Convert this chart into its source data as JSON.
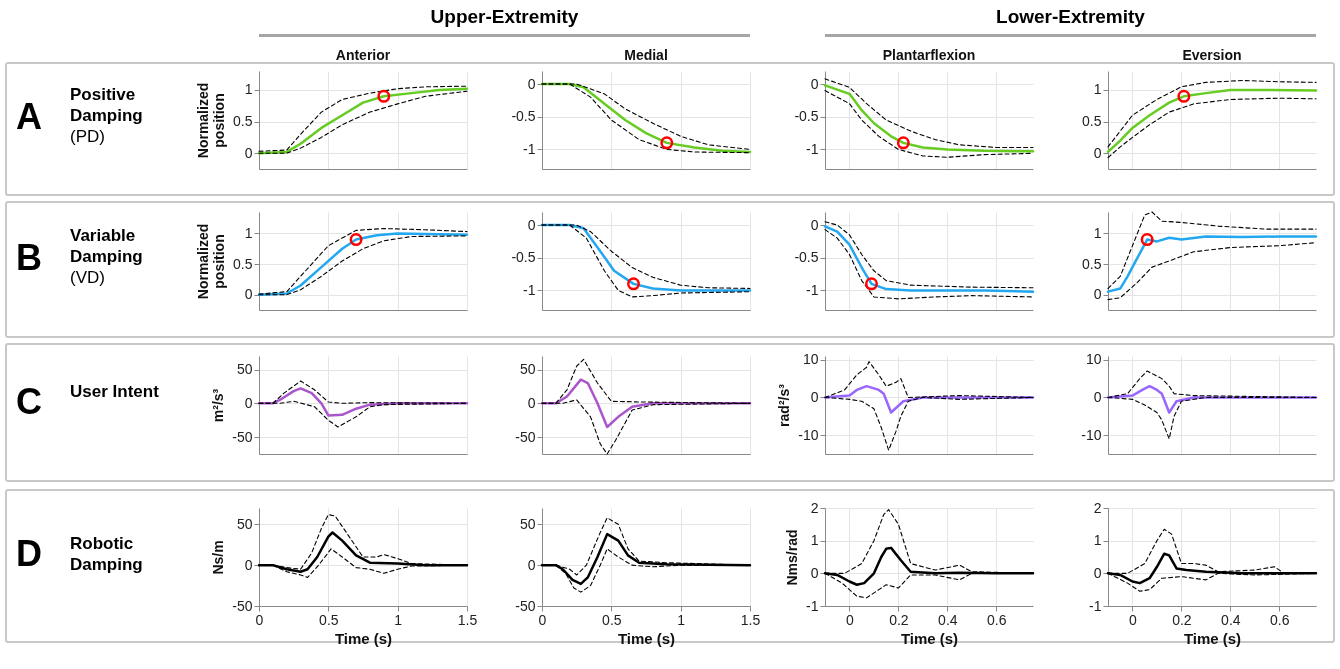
{
  "chart_data": [
    {
      "type": "line",
      "title": "Anterior",
      "ylabel": "Normalized position",
      "annotations": [
        "Upper-Extremity",
        "A",
        "Positive Damping",
        "(PD)"
      ],
      "xlim": [
        0,
        1.5
      ],
      "xticks": [
        0,
        0.5,
        1,
        1.5
      ],
      "ylim": [
        -0.25,
        1.3
      ],
      "yticks": [
        0,
        0.5,
        1
      ],
      "grid": true,
      "tick_labels": "y",
      "series": [
        {
          "color": "#66cc22",
          "line_style": "solid",
          "x": [
            0,
            0.2,
            0.3,
            0.45,
            0.6,
            0.75,
            0.9,
            1.1,
            1.3,
            1.5
          ],
          "values": [
            0,
            0.02,
            0.15,
            0.4,
            0.6,
            0.8,
            0.9,
            0.95,
            1,
            1.02
          ]
        },
        {
          "color": "#000000",
          "line_style": "dashed",
          "x": [
            0,
            0.2,
            0.3,
            0.45,
            0.6,
            0.8,
            1,
            1.2,
            1.5
          ],
          "values": [
            0.03,
            0.05,
            0.3,
            0.65,
            0.85,
            0.95,
            1.02,
            1.05,
            1.06
          ]
        },
        {
          "color": "#000000",
          "line_style": "dashed",
          "x": [
            0,
            0.2,
            0.3,
            0.45,
            0.6,
            0.8,
            1,
            1.2,
            1.5
          ],
          "values": [
            0,
            0,
            0.08,
            0.25,
            0.45,
            0.65,
            0.78,
            0.9,
            0.98
          ]
        },
        {
          "type": "scatter",
          "color": "#ff0000",
          "marker": "circle",
          "x": [
            0.9
          ],
          "values": [
            0.9
          ]
        }
      ]
    },
    {
      "type": "line",
      "title": "Medial",
      "xlim": [
        0,
        1.5
      ],
      "xticks": [
        0,
        0.5,
        1,
        1.5
      ],
      "ylim": [
        -1.3,
        0.2
      ],
      "yticks": [
        -1,
        -0.5,
        0
      ],
      "grid": true,
      "tick_labels": "y",
      "series": [
        {
          "color": "#66cc22",
          "line_style": "solid",
          "x": [
            0,
            0.2,
            0.3,
            0.45,
            0.6,
            0.75,
            0.9,
            1.1,
            1.3,
            1.5
          ],
          "values": [
            0,
            0,
            -0.05,
            -0.3,
            -0.55,
            -0.75,
            -0.9,
            -0.97,
            -1.02,
            -1.04
          ]
        },
        {
          "color": "#000000",
          "line_style": "dashed",
          "x": [
            0,
            0.25,
            0.45,
            0.6,
            0.8,
            1,
            1.2,
            1.5
          ],
          "values": [
            0,
            0,
            -0.15,
            -0.38,
            -0.6,
            -0.8,
            -0.93,
            -1
          ]
        },
        {
          "color": "#000000",
          "line_style": "dashed",
          "x": [
            0,
            0.2,
            0.35,
            0.5,
            0.7,
            0.9,
            1.1,
            1.5
          ],
          "values": [
            0,
            0,
            -0.2,
            -0.55,
            -0.85,
            -1,
            -1.04,
            -1.05
          ]
        },
        {
          "type": "scatter",
          "color": "#ff0000",
          "marker": "circle",
          "x": [
            0.9
          ],
          "values": [
            -0.9
          ]
        }
      ]
    },
    {
      "type": "line",
      "title": "Plantarflexion",
      "annotations": [
        "Lower-Extremity"
      ],
      "xlim": [
        -0.1,
        0.75
      ],
      "xticks": [
        0,
        0.2,
        0.4,
        0.6
      ],
      "ylim": [
        -1.3,
        0.2
      ],
      "yticks": [
        -1,
        -0.5,
        0
      ],
      "grid": true,
      "tick_labels": "y",
      "series": [
        {
          "color": "#66cc22",
          "line_style": "solid",
          "x": [
            -0.1,
            0,
            0.05,
            0.1,
            0.17,
            0.22,
            0.3,
            0.4,
            0.55,
            0.75
          ],
          "values": [
            -0.02,
            -0.15,
            -0.4,
            -0.6,
            -0.8,
            -0.9,
            -0.97,
            -1,
            -1.02,
            -1.03
          ]
        },
        {
          "color": "#000000",
          "line_style": "dashed",
          "x": [
            -0.1,
            0,
            0.07,
            0.15,
            0.25,
            0.35,
            0.45,
            0.6,
            0.75
          ],
          "values": [
            0.08,
            -0.05,
            -0.3,
            -0.55,
            -0.72,
            -0.85,
            -0.93,
            -0.97,
            -0.97
          ]
        },
        {
          "color": "#000000",
          "line_style": "dashed",
          "x": [
            -0.1,
            0,
            0.05,
            0.12,
            0.2,
            0.3,
            0.4,
            0.55,
            0.75
          ],
          "values": [
            -0.1,
            -0.3,
            -0.55,
            -0.8,
            -1,
            -1.1,
            -1.12,
            -1.08,
            -1.06
          ]
        },
        {
          "type": "scatter",
          "color": "#ff0000",
          "marker": "circle",
          "x": [
            0.22
          ],
          "values": [
            -0.9
          ]
        }
      ]
    },
    {
      "type": "line",
      "title": "Eversion",
      "xlim": [
        -0.1,
        0.75
      ],
      "xticks": [
        0,
        0.2,
        0.4,
        0.6
      ],
      "ylim": [
        -0.25,
        1.3
      ],
      "yticks": [
        0,
        0.5,
        1
      ],
      "grid": true,
      "tick_labels": "y",
      "series": [
        {
          "color": "#66cc22",
          "line_style": "solid",
          "x": [
            -0.1,
            -0.05,
            0,
            0.07,
            0.15,
            0.21,
            0.3,
            0.4,
            0.55,
            0.75
          ],
          "values": [
            0.02,
            0.2,
            0.4,
            0.6,
            0.8,
            0.9,
            0.95,
            1,
            1,
            0.99
          ]
        },
        {
          "color": "#000000",
          "line_style": "dashed",
          "x": [
            -0.1,
            -0.05,
            0,
            0.1,
            0.2,
            0.3,
            0.45,
            0.6,
            0.75
          ],
          "values": [
            0.1,
            0.35,
            0.6,
            0.85,
            1.05,
            1.12,
            1.15,
            1.13,
            1.12
          ]
        },
        {
          "color": "#000000",
          "line_style": "dashed",
          "x": [
            -0.1,
            -0.05,
            0,
            0.07,
            0.15,
            0.25,
            0.4,
            0.6,
            0.75
          ],
          "values": [
            -0.07,
            0.1,
            0.25,
            0.45,
            0.65,
            0.78,
            0.85,
            0.87,
            0.86
          ]
        },
        {
          "type": "scatter",
          "color": "#ff0000",
          "marker": "circle",
          "x": [
            0.21
          ],
          "values": [
            0.9
          ]
        }
      ]
    },
    {
      "type": "line",
      "ylabel": "Normalized position",
      "annotations": [
        "B",
        "Variable Damping",
        "(VD)"
      ],
      "xlim": [
        0,
        1.5
      ],
      "xticks": [
        0,
        0.5,
        1,
        1.5
      ],
      "ylim": [
        -0.25,
        1.35
      ],
      "yticks": [
        0,
        0.5,
        1
      ],
      "grid": true,
      "tick_labels": "y",
      "series": [
        {
          "color": "#22a7f0",
          "line_style": "solid",
          "x": [
            0,
            0.2,
            0.3,
            0.45,
            0.6,
            0.7,
            0.85,
            1,
            1.5
          ],
          "values": [
            0,
            0.02,
            0.15,
            0.45,
            0.75,
            0.9,
            0.97,
            1,
            0.98
          ]
        },
        {
          "color": "#000000",
          "line_style": "dashed",
          "x": [
            0,
            0.2,
            0.3,
            0.5,
            0.7,
            0.9,
            1.2,
            1.5
          ],
          "values": [
            0.01,
            0.05,
            0.3,
            0.8,
            1.05,
            1.08,
            1.06,
            1.03
          ]
        },
        {
          "color": "#000000",
          "line_style": "dashed",
          "x": [
            0,
            0.2,
            0.3,
            0.45,
            0.6,
            0.75,
            0.9,
            1.1,
            1.5
          ],
          "values": [
            0,
            0,
            0.08,
            0.3,
            0.55,
            0.75,
            0.88,
            0.95,
            0.96
          ]
        },
        {
          "type": "scatter",
          "color": "#ff0000",
          "marker": "circle",
          "x": [
            0.7
          ],
          "values": [
            0.9
          ]
        }
      ]
    },
    {
      "type": "line",
      "xlim": [
        0,
        1.5
      ],
      "xticks": [
        0,
        0.5,
        1,
        1.5
      ],
      "ylim": [
        -1.3,
        0.2
      ],
      "yticks": [
        -1,
        -0.5,
        0
      ],
      "grid": true,
      "tick_labels": "y",
      "series": [
        {
          "color": "#22a7f0",
          "line_style": "solid",
          "x": [
            0,
            0.2,
            0.3,
            0.42,
            0.52,
            0.66,
            0.8,
            1,
            1.5
          ],
          "values": [
            0,
            0,
            -0.05,
            -0.4,
            -0.7,
            -0.9,
            -0.97,
            -1,
            -1
          ]
        },
        {
          "color": "#000000",
          "line_style": "dashed",
          "x": [
            0,
            0.25,
            0.35,
            0.5,
            0.65,
            0.8,
            1,
            1.2,
            1.5
          ],
          "values": [
            0,
            0,
            -0.1,
            -0.4,
            -0.65,
            -0.8,
            -0.92,
            -0.96,
            -0.97
          ]
        },
        {
          "color": "#000000",
          "line_style": "dashed",
          "x": [
            0,
            0.2,
            0.32,
            0.45,
            0.55,
            0.65,
            0.8,
            1,
            1.5
          ],
          "values": [
            0,
            0,
            -0.2,
            -0.7,
            -1,
            -1.1,
            -1.08,
            -1.04,
            -1.02
          ]
        },
        {
          "type": "scatter",
          "color": "#ff0000",
          "marker": "circle",
          "x": [
            0.66
          ],
          "values": [
            -0.9
          ]
        }
      ]
    },
    {
      "type": "line",
      "xlim": [
        -0.1,
        0.75
      ],
      "xticks": [
        0,
        0.2,
        0.4,
        0.6
      ],
      "ylim": [
        -1.3,
        0.2
      ],
      "yticks": [
        -1,
        -0.5,
        0
      ],
      "grid": true,
      "tick_labels": "y",
      "series": [
        {
          "color": "#22a7f0",
          "line_style": "solid",
          "x": [
            -0.1,
            -0.05,
            0,
            0.05,
            0.09,
            0.15,
            0.25,
            0.4,
            0.55,
            0.75
          ],
          "values": [
            -0.02,
            -0.1,
            -0.3,
            -0.65,
            -0.9,
            -0.98,
            -1,
            -1,
            -1,
            -1.02
          ]
        },
        {
          "color": "#000000",
          "line_style": "dashed",
          "x": [
            -0.1,
            -0.05,
            0,
            0.05,
            0.1,
            0.15,
            0.25,
            0.5,
            0.75
          ],
          "values": [
            0.05,
            0,
            -0.15,
            -0.45,
            -0.7,
            -0.85,
            -0.92,
            -0.95,
            -0.96
          ]
        },
        {
          "color": "#000000",
          "line_style": "dashed",
          "x": [
            -0.1,
            -0.05,
            0,
            0.05,
            0.1,
            0.2,
            0.35,
            0.5,
            0.75
          ],
          "values": [
            -0.07,
            -0.2,
            -0.45,
            -0.85,
            -1.1,
            -1.13,
            -1.1,
            -1.08,
            -1.1
          ]
        },
        {
          "type": "scatter",
          "color": "#ff0000",
          "marker": "circle",
          "x": [
            0.09
          ],
          "values": [
            -0.9
          ]
        }
      ]
    },
    {
      "type": "line",
      "xlim": [
        -0.1,
        0.75
      ],
      "xticks": [
        0,
        0.2,
        0.4,
        0.6
      ],
      "ylim": [
        -0.25,
        1.35
      ],
      "yticks": [
        0,
        0.5,
        1
      ],
      "grid": true,
      "tick_labels": "y",
      "series": [
        {
          "color": "#22a7f0",
          "line_style": "solid",
          "x": [
            -0.1,
            -0.05,
            -0.02,
            0.02,
            0.06,
            0.1,
            0.15,
            0.2,
            0.3,
            0.45,
            0.6,
            0.75
          ],
          "values": [
            0.05,
            0.1,
            0.3,
            0.6,
            0.9,
            0.87,
            0.93,
            0.9,
            0.95,
            0.94,
            0.95,
            0.95
          ]
        },
        {
          "color": "#000000",
          "line_style": "dashed",
          "x": [
            -0.1,
            -0.05,
            0,
            0.05,
            0.08,
            0.12,
            0.2,
            0.35,
            0.55,
            0.75
          ],
          "values": [
            0.1,
            0.3,
            0.8,
            1.3,
            1.35,
            1.2,
            1.18,
            1.12,
            1.07,
            1.07
          ]
        },
        {
          "color": "#000000",
          "line_style": "dashed",
          "x": [
            -0.1,
            -0.05,
            0.02,
            0.08,
            0.15,
            0.25,
            0.4,
            0.6,
            0.75
          ],
          "values": [
            -0.08,
            -0.05,
            0.2,
            0.45,
            0.55,
            0.7,
            0.77,
            0.8,
            0.85
          ]
        },
        {
          "type": "scatter",
          "color": "#ff0000",
          "marker": "circle",
          "x": [
            0.06
          ],
          "values": [
            0.9
          ]
        }
      ]
    },
    {
      "type": "line",
      "ylabel": "m²/s³",
      "annotations": [
        "C",
        "User Intent"
      ],
      "xlim": [
        0,
        1.5
      ],
      "xticks": [
        0,
        0.5,
        1,
        1.5
      ],
      "ylim": [
        -75,
        70
      ],
      "yticks": [
        -50,
        0,
        50
      ],
      "grid": true,
      "tick_labels": "y",
      "series": [
        {
          "color": "#aa55cc",
          "line_style": "solid",
          "x": [
            0,
            0.1,
            0.15,
            0.25,
            0.3,
            0.38,
            0.45,
            0.5,
            0.6,
            0.7,
            0.8,
            1,
            1.5
          ],
          "values": [
            0,
            0,
            5,
            18,
            22,
            15,
            0,
            -18,
            -17,
            -8,
            -2,
            0,
            0
          ]
        },
        {
          "color": "#000000",
          "line_style": "dashed",
          "x": [
            0,
            0.1,
            0.18,
            0.3,
            0.4,
            0.5,
            0.6,
            0.8,
            1.5
          ],
          "values": [
            0,
            0,
            15,
            33,
            20,
            2,
            0,
            1,
            0
          ]
        },
        {
          "color": "#000000",
          "line_style": "dashed",
          "x": [
            0,
            0.15,
            0.25,
            0.4,
            0.5,
            0.57,
            0.7,
            0.8,
            0.9,
            1.5
          ],
          "values": [
            0,
            0,
            3,
            -5,
            -25,
            -35,
            -20,
            -5,
            -2,
            0
          ]
        }
      ]
    },
    {
      "type": "line",
      "xlim": [
        0,
        1.5
      ],
      "xticks": [
        0,
        0.5,
        1,
        1.5
      ],
      "ylim": [
        -75,
        70
      ],
      "yticks": [
        -50,
        0,
        50
      ],
      "grid": true,
      "tick_labels": "y",
      "series": [
        {
          "color": "#aa55cc",
          "line_style": "solid",
          "x": [
            0,
            0.1,
            0.18,
            0.28,
            0.33,
            0.4,
            0.47,
            0.55,
            0.65,
            0.8,
            1.5
          ],
          "values": [
            0,
            0,
            10,
            35,
            30,
            0,
            -35,
            -20,
            -5,
            0,
            0
          ]
        },
        {
          "color": "#000000",
          "line_style": "dashed",
          "x": [
            0,
            0.1,
            0.18,
            0.25,
            0.3,
            0.4,
            0.5,
            0.7,
            1.5
          ],
          "values": [
            0,
            0,
            20,
            55,
            65,
            30,
            3,
            2,
            0
          ]
        },
        {
          "color": "#000000",
          "line_style": "dashed",
          "x": [
            0,
            0.15,
            0.25,
            0.35,
            0.42,
            0.47,
            0.53,
            0.65,
            0.8,
            1.5
          ],
          "values": [
            0,
            0,
            5,
            -20,
            -60,
            -75,
            -55,
            -10,
            -2,
            0
          ]
        }
      ]
    },
    {
      "type": "line",
      "ylabel": "rad²/s³",
      "xlim": [
        -0.1,
        0.75
      ],
      "xticks": [
        0,
        0.2,
        0.4,
        0.6
      ],
      "ylim": [
        -15,
        11
      ],
      "yticks": [
        -10,
        0,
        10
      ],
      "grid": true,
      "tick_labels": "y",
      "series": [
        {
          "color": "#9966ff",
          "line_style": "solid",
          "x": [
            -0.1,
            0,
            0.03,
            0.07,
            0.12,
            0.14,
            0.17,
            0.22,
            0.3,
            0.75
          ],
          "values": [
            0,
            0.5,
            2,
            3,
            2,
            1,
            -4,
            -1,
            0,
            0
          ]
        },
        {
          "color": "#000000",
          "line_style": "dashed",
          "x": [
            -0.1,
            -0.02,
            0.03,
            0.07,
            0.08,
            0.12,
            0.15,
            0.19,
            0.21,
            0.24,
            0.45,
            0.75
          ],
          "values": [
            0,
            2,
            6,
            8,
            9.5,
            6,
            3,
            4,
            5,
            0,
            0.5,
            0
          ]
        },
        {
          "color": "#000000",
          "line_style": "dashed",
          "x": [
            -0.1,
            0,
            0.05,
            0.1,
            0.13,
            0.16,
            0.19,
            0.21,
            0.24,
            0.3,
            0.45,
            0.75
          ],
          "values": [
            0,
            -0.5,
            -1,
            -3,
            -8,
            -14,
            -9,
            -5,
            -1,
            0,
            -0.5,
            0
          ]
        }
      ]
    },
    {
      "type": "line",
      "xlim": [
        -0.1,
        0.75
      ],
      "xticks": [
        0,
        0.2,
        0.4,
        0.6
      ],
      "ylim": [
        -15,
        11
      ],
      "yticks": [
        -10,
        0,
        10
      ],
      "grid": true,
      "tick_labels": "y",
      "series": [
        {
          "color": "#9966ff",
          "line_style": "solid",
          "x": [
            -0.1,
            0,
            0.04,
            0.07,
            0.1,
            0.12,
            0.15,
            0.18,
            0.25,
            0.75
          ],
          "values": [
            0,
            0.5,
            2,
            3,
            2,
            1,
            -4,
            -1,
            0,
            0
          ]
        },
        {
          "color": "#000000",
          "line_style": "dashed",
          "x": [
            -0.1,
            -0.02,
            0.03,
            0.06,
            0.09,
            0.12,
            0.15,
            0.17,
            0.25,
            0.75
          ],
          "values": [
            0,
            1,
            5,
            7,
            6,
            5,
            3,
            1,
            0.5,
            0
          ]
        },
        {
          "color": "#000000",
          "line_style": "dashed",
          "x": [
            -0.1,
            0,
            0.05,
            0.1,
            0.12,
            0.15,
            0.17,
            0.2,
            0.3,
            0.75
          ],
          "values": [
            0,
            -0.5,
            -2,
            -4,
            -6,
            -11,
            -5,
            -1,
            0,
            0
          ]
        }
      ]
    },
    {
      "type": "line",
      "xlabel": "Time (s)",
      "ylabel": "Ns/m",
      "annotations": [
        "D",
        "Robotic Damping"
      ],
      "xlim": [
        0,
        1.5
      ],
      "xticks": [
        0,
        0.5,
        1,
        1.5
      ],
      "ylim": [
        -50,
        70
      ],
      "yticks": [
        -50,
        0,
        50
      ],
      "grid": true,
      "series": [
        {
          "color": "#000000",
          "line_style": "solid",
          "x": [
            0,
            0.1,
            0.2,
            0.3,
            0.35,
            0.42,
            0.5,
            0.53,
            0.6,
            0.7,
            0.8,
            1,
            1.2,
            1.5
          ],
          "values": [
            0,
            0,
            -5,
            -8,
            -5,
            10,
            35,
            40,
            30,
            12,
            3,
            2,
            0,
            0
          ]
        },
        {
          "color": "#000000",
          "line_style": "dashed",
          "x": [
            0,
            0.1,
            0.2,
            0.3,
            0.38,
            0.45,
            0.5,
            0.55,
            0.65,
            0.75,
            0.85,
            0.9,
            1,
            1.1,
            1.5
          ],
          "values": [
            0,
            0,
            -3,
            -5,
            15,
            45,
            62,
            60,
            35,
            10,
            10,
            13,
            8,
            2,
            0
          ]
        },
        {
          "color": "#000000",
          "line_style": "dashed",
          "x": [
            0,
            0.1,
            0.2,
            0.3,
            0.35,
            0.43,
            0.52,
            0.6,
            0.7,
            0.8,
            0.9,
            1,
            1.1,
            1.5
          ],
          "values": [
            0,
            0,
            -8,
            -12,
            -15,
            0,
            20,
            10,
            -3,
            -5,
            -10,
            -5,
            -1,
            0
          ]
        }
      ]
    },
    {
      "type": "line",
      "xlabel": "Time (s)",
      "xlim": [
        0,
        1.5
      ],
      "xticks": [
        0,
        0.5,
        1,
        1.5
      ],
      "ylim": [
        -50,
        70
      ],
      "yticks": [
        -50,
        0,
        50
      ],
      "grid": true,
      "series": [
        {
          "color": "#000000",
          "line_style": "solid",
          "x": [
            0,
            0.1,
            0.15,
            0.22,
            0.28,
            0.33,
            0.4,
            0.47,
            0.55,
            0.62,
            0.7,
            0.9,
            1.5
          ],
          "values": [
            0,
            0,
            -5,
            -18,
            -23,
            -15,
            10,
            38,
            30,
            12,
            3,
            1,
            0
          ]
        },
        {
          "color": "#000000",
          "line_style": "dashed",
          "x": [
            0,
            0.1,
            0.2,
            0.25,
            0.32,
            0.42,
            0.47,
            0.55,
            0.62,
            0.7,
            0.9,
            1.5
          ],
          "values": [
            0,
            0,
            -5,
            -12,
            0,
            40,
            58,
            50,
            20,
            5,
            3,
            0
          ]
        },
        {
          "color": "#000000",
          "line_style": "dashed",
          "x": [
            0,
            0.1,
            0.17,
            0.23,
            0.28,
            0.35,
            0.42,
            0.47,
            0.55,
            0.65,
            0.8,
            1,
            1.5
          ],
          "values": [
            0,
            0,
            -10,
            -28,
            -33,
            -25,
            0,
            20,
            10,
            0,
            -2,
            0,
            0
          ]
        }
      ]
    },
    {
      "type": "line",
      "xlabel": "Time (s)",
      "ylabel": "Nms/rad",
      "xlim": [
        -0.1,
        0.75
      ],
      "xticks": [
        0,
        0.2,
        0.4,
        0.6
      ],
      "ylim": [
        -1,
        2
      ],
      "yticks": [
        -1,
        0,
        1,
        2
      ],
      "grid": true,
      "series": [
        {
          "color": "#000000",
          "line_style": "solid",
          "x": [
            -0.1,
            -0.05,
            0,
            0.03,
            0.06,
            0.1,
            0.13,
            0.15,
            0.17,
            0.21,
            0.25,
            0.35,
            0.45,
            0.6,
            0.75
          ],
          "values": [
            0,
            -0.05,
            -0.25,
            -0.35,
            -0.3,
            0,
            0.5,
            0.75,
            0.78,
            0.4,
            0.05,
            0,
            0.02,
            0,
            0
          ]
        },
        {
          "color": "#000000",
          "line_style": "dashed",
          "x": [
            -0.1,
            -0.02,
            0.05,
            0.1,
            0.14,
            0.16,
            0.2,
            0.25,
            0.35,
            0.45,
            0.5,
            0.75
          ],
          "values": [
            0,
            0,
            0.3,
            1,
            1.8,
            1.95,
            1.5,
            0.3,
            0.1,
            0.25,
            0.05,
            0
          ]
        },
        {
          "color": "#000000",
          "line_style": "dashed",
          "x": [
            -0.1,
            -0.03,
            0.03,
            0.07,
            0.12,
            0.15,
            0.2,
            0.25,
            0.35,
            0.45,
            0.5,
            0.75
          ],
          "values": [
            0,
            -0.3,
            -0.7,
            -0.75,
            -0.5,
            -0.35,
            -0.45,
            -0.05,
            -0.05,
            -0.2,
            0,
            0
          ]
        }
      ]
    },
    {
      "type": "line",
      "xlabel": "Time (s)",
      "xlim": [
        -0.1,
        0.75
      ],
      "xticks": [
        0,
        0.2,
        0.4,
        0.6
      ],
      "ylim": [
        -1,
        2
      ],
      "yticks": [
        -1,
        0,
        1,
        2
      ],
      "grid": true,
      "series": [
        {
          "color": "#000000",
          "line_style": "solid",
          "x": [
            -0.1,
            -0.05,
            0,
            0.03,
            0.07,
            0.1,
            0.13,
            0.15,
            0.18,
            0.22,
            0.3,
            0.45,
            0.75
          ],
          "values": [
            0,
            -0.05,
            -0.25,
            -0.3,
            -0.15,
            0.2,
            0.6,
            0.55,
            0.15,
            0.1,
            0.05,
            0,
            0
          ]
        },
        {
          "color": "#000000",
          "line_style": "dashed",
          "x": [
            -0.1,
            -0.02,
            0.05,
            0.1,
            0.13,
            0.16,
            0.2,
            0.25,
            0.3,
            0.35,
            0.5,
            0.58,
            0.62,
            0.75
          ],
          "values": [
            0,
            0,
            0.3,
            1,
            1.35,
            1.2,
            0.3,
            0.3,
            0.25,
            0.05,
            0.1,
            0.2,
            0,
            0
          ]
        },
        {
          "color": "#000000",
          "line_style": "dashed",
          "x": [
            -0.1,
            -0.02,
            0.03,
            0.07,
            0.12,
            0.2,
            0.3,
            0.35,
            0.5,
            0.75
          ],
          "values": [
            0,
            -0.3,
            -0.55,
            -0.5,
            -0.15,
            -0.1,
            -0.2,
            0,
            -0.05,
            0
          ]
        }
      ]
    }
  ]
}
